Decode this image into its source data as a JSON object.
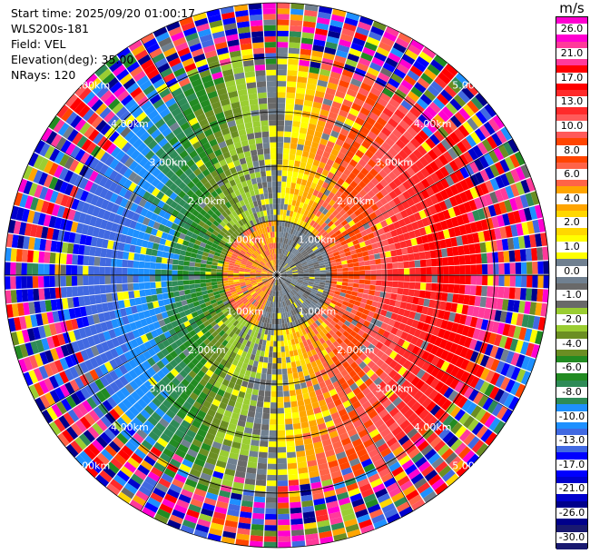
{
  "header": {
    "start_time": "Start time: 2025/09/20 01:00:17",
    "instrument": "WLS200s-181",
    "field": "Field: VEL",
    "elevation": "Elevation(deg): 35.00",
    "nrays": "NRays: 120"
  },
  "colorbar": {
    "unit": "m/s",
    "ticks": [
      "26.0",
      "21.0",
      "17.0",
      "13.0",
      "10.0",
      "8.0",
      "6.0",
      "4.0",
      "2.0",
      "1.0",
      "0.0",
      "-1.0",
      "-2.0",
      "-4.0",
      "-6.0",
      "-8.0",
      "-10.0",
      "-13.0",
      "-17.0",
      "-21.0",
      "-26.0",
      "-30.0"
    ],
    "colors": [
      "#ff00d0",
      "#ff3a9a",
      "#ff0000",
      "#ff2a2a",
      "#ff5a5a",
      "#ff4500",
      "#ff6347",
      "#ffa500",
      "#ffd700",
      "#ffff00",
      "#708090",
      "#696969",
      "#9acd32",
      "#6b8e23",
      "#228b22",
      "#2e8b57",
      "#1e90ff",
      "#4169e1",
      "#0000ff",
      "#0000cd",
      "#00008b",
      "#191970"
    ]
  },
  "chart_data": {
    "type": "heatmap",
    "projection": "polar PPI (range rings)",
    "nrays": 120,
    "field": "VEL",
    "units": "m/s",
    "ring_labels_km": [
      "1.00km",
      "2.00km",
      "3.00km",
      "4.00km",
      "5.00km"
    ],
    "range_max_km": 5.0,
    "velocity_range": [
      -30.0,
      26.0
    ],
    "pattern": "folded radial velocity dipole: positive (yellow/orange/red) to the east, negative (green/grey) to the west; noisy multicolor clutter beyond ~4 km"
  }
}
